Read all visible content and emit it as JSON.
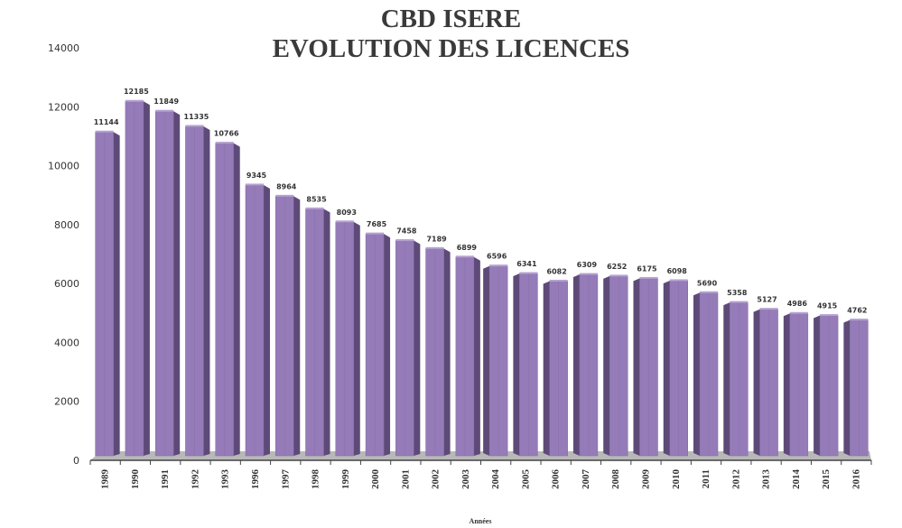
{
  "chart_data": {
    "type": "bar",
    "title": [
      "CBD ISERE",
      "EVOLUTION DES LICENCES"
    ],
    "xlabel": "Années",
    "ylabel": "",
    "ylim": [
      0,
      14000
    ],
    "yticks": [
      0,
      2000,
      4000,
      6000,
      8000,
      10000,
      12000,
      14000
    ],
    "categories": [
      "1989",
      "1990",
      "1991",
      "1992",
      "1993",
      "1996",
      "1997",
      "1998",
      "1999",
      "2000",
      "2001",
      "2002",
      "2003",
      "2004",
      "2005",
      "2006",
      "2007",
      "2008",
      "2009",
      "2010",
      "2011",
      "2012",
      "2013",
      "2014",
      "2015",
      "2016"
    ],
    "values": [
      11144,
      12185,
      11849,
      11335,
      10766,
      9345,
      8964,
      8535,
      8093,
      7685,
      7458,
      7189,
      6899,
      6596,
      6341,
      6082,
      6309,
      6252,
      6175,
      6098,
      5690,
      5358,
      5127,
      4986,
      4915,
      4762
    ],
    "data_labels": true,
    "grid": false,
    "style": "3d",
    "colors": {
      "bar_front": "#957cb8",
      "bar_side": "#5e4a78",
      "bar_top": "#b5a2d0",
      "floor": "#b8b8b8",
      "text": "#333333"
    }
  }
}
